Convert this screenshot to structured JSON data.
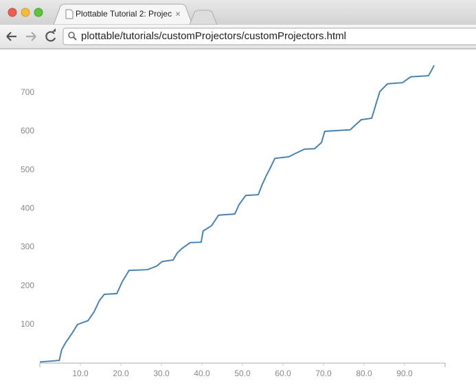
{
  "browser": {
    "tab_title": "Plottable Tutorial 2: Projec",
    "url": "plottable/tutorials/customProjectors/customProjectors.html"
  },
  "chart_data": {
    "type": "line",
    "x": [
      0,
      4.8,
      5.4,
      6.3,
      8,
      9.3,
      11.9,
      13.4,
      14.7,
      15.9,
      19,
      20.3,
      21.5,
      22,
      26.6,
      28.8,
      30.2,
      32.9,
      33.9,
      35.1,
      37.1,
      39.8,
      40.3,
      42.4,
      44.1,
      48.1,
      49.2,
      50.8,
      53.9,
      54.9,
      55.9,
      56.8,
      58,
      61.4,
      63.1,
      65.3,
      67.8,
      69.5,
      70.3,
      76.6,
      77.6,
      79.3,
      81.9,
      82.9,
      83.9,
      85.8,
      89.5,
      91.5,
      95.9,
      96.6,
      97.3
    ],
    "series": [
      {
        "color": "#4682b4",
        "values": [
          3,
          7,
          35,
          52,
          78,
          100,
          110,
          133,
          162,
          178,
          180,
          210,
          231,
          240,
          242,
          251,
          263,
          267,
          285,
          297,
          312,
          313,
          342,
          356,
          383,
          386,
          411,
          434,
          436,
          463,
          486,
          504,
          530,
          534,
          543,
          554,
          555,
          571,
          600,
          604,
          614,
          630,
          634,
          669,
          703,
          723,
          726,
          741,
          744,
          757,
          771
        ]
      }
    ],
    "xlim": [
      0,
      100
    ],
    "ylim": [
      0,
      775
    ],
    "xticks": [
      {
        "value": 10,
        "label": "10.0"
      },
      {
        "value": 20,
        "label": "20.0"
      },
      {
        "value": 30,
        "label": "30.0"
      },
      {
        "value": 40,
        "label": "40.0"
      },
      {
        "value": 50,
        "label": "50.0"
      },
      {
        "value": 60,
        "label": "60.0"
      },
      {
        "value": 70,
        "label": "70.0"
      },
      {
        "value": 80,
        "label": "80.0"
      },
      {
        "value": 90,
        "label": "90.0"
      }
    ],
    "yticks": [
      100,
      200,
      300,
      400,
      500,
      600,
      700
    ]
  }
}
